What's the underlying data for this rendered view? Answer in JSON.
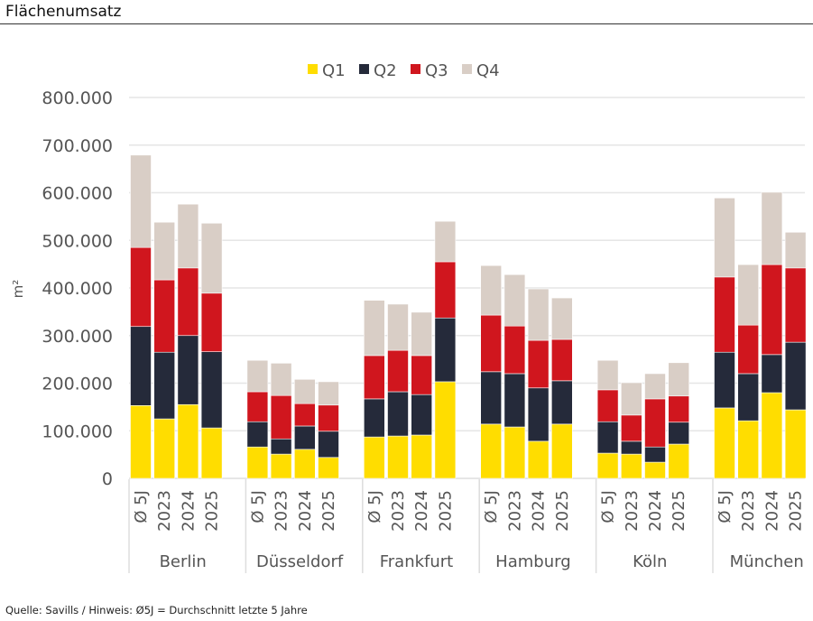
{
  "title": "Flächenumsatz",
  "footer": "Quelle: Savills / Hinweis: Ø5J = Durchschnitt letzte 5 Jahre",
  "chart_data": {
    "type": "bar",
    "stacked": true,
    "ylabel": "m²",
    "ylim": [
      0,
      800000
    ],
    "yticks": [
      0,
      100000,
      200000,
      300000,
      400000,
      500000,
      600000,
      700000,
      800000
    ],
    "ytick_labels": [
      "0",
      "100.000",
      "200.000",
      "300.000",
      "400.000",
      "500.000",
      "600.000",
      "700.000",
      "800.000"
    ],
    "grid": true,
    "legend_position": "top",
    "subcategories": [
      "Ø 5J",
      "2023",
      "2024",
      "2025"
    ],
    "groups": [
      "Berlin",
      "Düsseldorf",
      "Frankfurt",
      "Hamburg",
      "Köln",
      "München"
    ],
    "series": [
      {
        "name": "Q1",
        "color": "#FFDD00",
        "values": [
          [
            153000,
            125000,
            155000,
            106000
          ],
          [
            66000,
            51000,
            61000,
            44000
          ],
          [
            87000,
            89000,
            91000,
            203000
          ],
          [
            114000,
            108000,
            78000,
            114000
          ],
          [
            53000,
            51000,
            34000,
            72000
          ],
          [
            148000,
            121000,
            180000,
            144000
          ]
        ]
      },
      {
        "name": "Q2",
        "color": "#252A3A",
        "values": [
          [
            166000,
            140000,
            145000,
            160000
          ],
          [
            53000,
            32000,
            49000,
            55000
          ],
          [
            80000,
            93000,
            85000,
            134000
          ],
          [
            110000,
            112000,
            112000,
            91000
          ],
          [
            66000,
            27000,
            32000,
            46000
          ],
          [
            117000,
            99000,
            80000,
            142000
          ]
        ]
      },
      {
        "name": "Q3",
        "color": "#D0161E",
        "values": [
          [
            166000,
            152000,
            142000,
            123000
          ],
          [
            63000,
            91000,
            47000,
            55000
          ],
          [
            91000,
            87000,
            82000,
            118000
          ],
          [
            119000,
            100000,
            100000,
            87000
          ],
          [
            67000,
            55000,
            101000,
            55000
          ],
          [
            158000,
            102000,
            189000,
            156000
          ]
        ]
      },
      {
        "name": "Q4",
        "color": "#D9CEC6",
        "values": [
          [
            194000,
            121000,
            134000,
            147000
          ],
          [
            66000,
            68000,
            51000,
            49000
          ],
          [
            116000,
            97000,
            91000,
            85000
          ],
          [
            104000,
            108000,
            108000,
            87000
          ],
          [
            62000,
            68000,
            53000,
            70000
          ],
          [
            166000,
            127000,
            152000,
            75000
          ]
        ]
      }
    ]
  }
}
